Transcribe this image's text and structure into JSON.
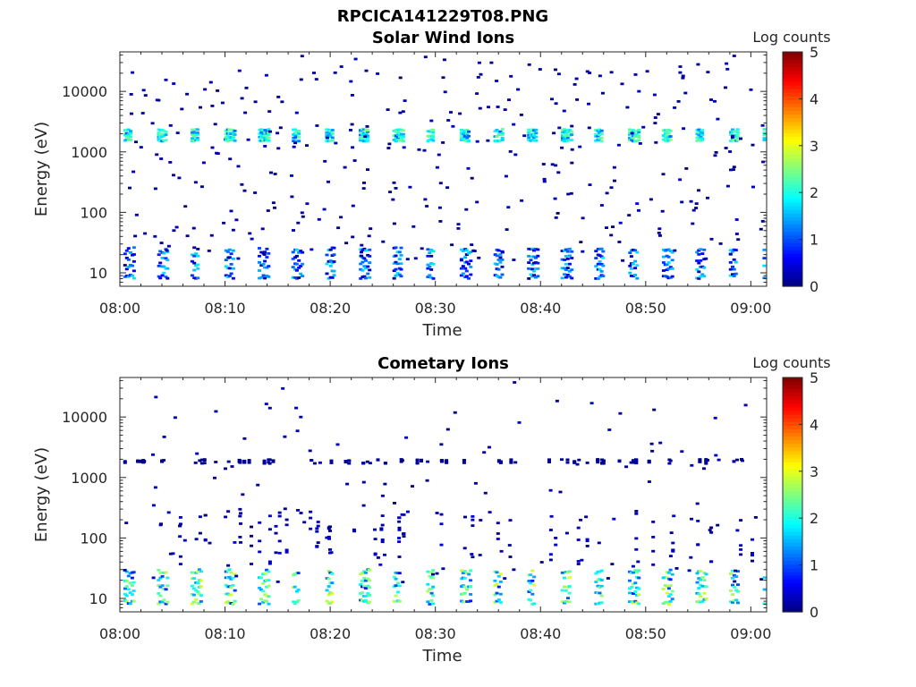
{
  "figure_title": "RPCICA141229T08.PNG",
  "chart_data": [
    {
      "type": "heatmap",
      "title": "Solar Wind Ions",
      "xlabel": "Time",
      "ylabel": "Energy (eV)",
      "x_ticks": [
        "08:00",
        "08:10",
        "08:20",
        "08:30",
        "08:40",
        "08:50",
        "09:00"
      ],
      "x_range_minutes": [
        0,
        61.5
      ],
      "y_scale": "log",
      "y_range": [
        6,
        45000
      ],
      "y_ticks": [
        10,
        100,
        1000,
        10000
      ],
      "y_tick_labels": [
        "10",
        "100",
        "1000",
        "10000"
      ],
      "colorbar": {
        "label": "Log counts",
        "range": [
          0,
          5
        ],
        "ticks": [
          "0",
          "1",
          "2",
          "3",
          "4",
          "5"
        ],
        "colormap": "jet"
      },
      "sweep_period_minutes": 3.2,
      "bands": [
        {
          "name": "solar-wind-peak",
          "energy_range_eV": [
            1500,
            2500
          ],
          "typical_log_counts": [
            1,
            2.5
          ]
        },
        {
          "name": "low-energy",
          "energy_range_eV": [
            8,
            30
          ],
          "typical_log_counts": [
            0,
            1.8
          ]
        }
      ]
    },
    {
      "type": "heatmap",
      "title": "Cometary Ions",
      "xlabel": "Time",
      "ylabel": "Energy (eV)",
      "x_ticks": [
        "08:00",
        "08:10",
        "08:20",
        "08:30",
        "08:40",
        "08:50",
        "09:00"
      ],
      "x_range_minutes": [
        0,
        61.5
      ],
      "y_scale": "log",
      "y_range": [
        6,
        45000
      ],
      "y_ticks": [
        10,
        100,
        1000,
        10000
      ],
      "y_tick_labels": [
        "10",
        "100",
        "1000",
        "10000"
      ],
      "colorbar": {
        "label": "Log counts",
        "range": [
          0,
          5
        ],
        "ticks": [
          "0",
          "1",
          "2",
          "3",
          "4",
          "5"
        ],
        "colormap": "jet"
      },
      "sweep_period_minutes": 3.2,
      "bands": [
        {
          "name": "cometary-low-energy",
          "energy_range_eV": [
            8,
            35
          ],
          "typical_log_counts": [
            0.5,
            3
          ]
        },
        {
          "name": "cometary-spread",
          "energy_range_eV": [
            35,
            300
          ],
          "typical_log_counts": [
            0,
            0.8
          ]
        },
        {
          "name": "sparse-high",
          "energy_range_eV": [
            1700,
            2000
          ],
          "typical_log_counts": [
            0,
            0.3
          ]
        }
      ]
    }
  ]
}
